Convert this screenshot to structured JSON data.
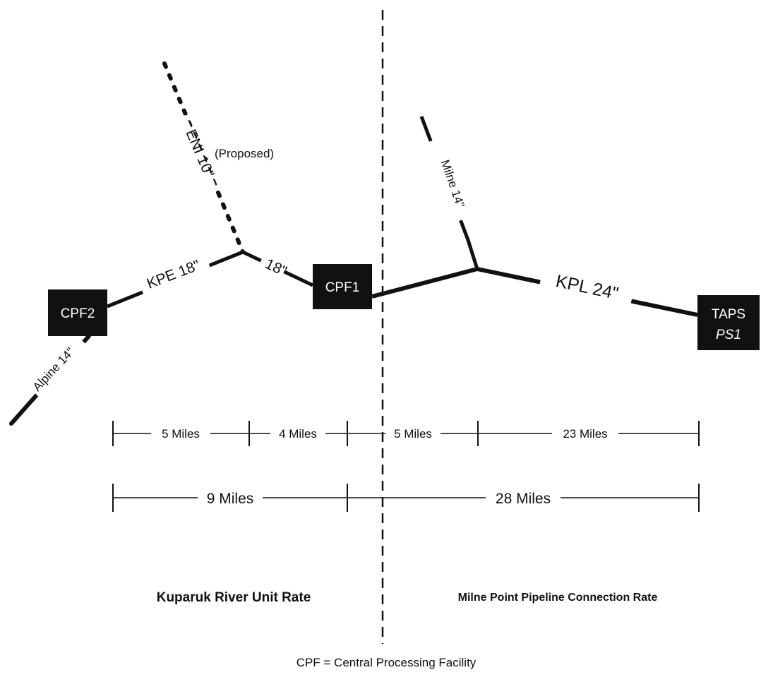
{
  "facilities": {
    "cpf2": "CPF2",
    "cpf1": "CPF1",
    "taps_line1": "TAPS",
    "taps_line2": "PS1"
  },
  "pipelines": {
    "kpe_left": "KPE 18\"",
    "kpe_right": "18\"",
    "eni": "ENI 10\"",
    "eni_note": "(Proposed)",
    "milne": "Milne 14\"",
    "kpl": "KPL 24\"",
    "alpine": "Alpine 14\""
  },
  "segments": [
    "5 Miles",
    "4 Miles",
    "5 Miles",
    "23 Miles"
  ],
  "totals": [
    "9 Miles",
    "28 Miles"
  ],
  "regions": {
    "left": "Kuparuk River Unit Rate",
    "right": "Milne Point Pipeline Connection Rate"
  },
  "footnote": "CPF = Central Processing Facility",
  "colors": {
    "ink": "#111111",
    "box_fill": "#111111",
    "box_text": "#ffffff"
  }
}
